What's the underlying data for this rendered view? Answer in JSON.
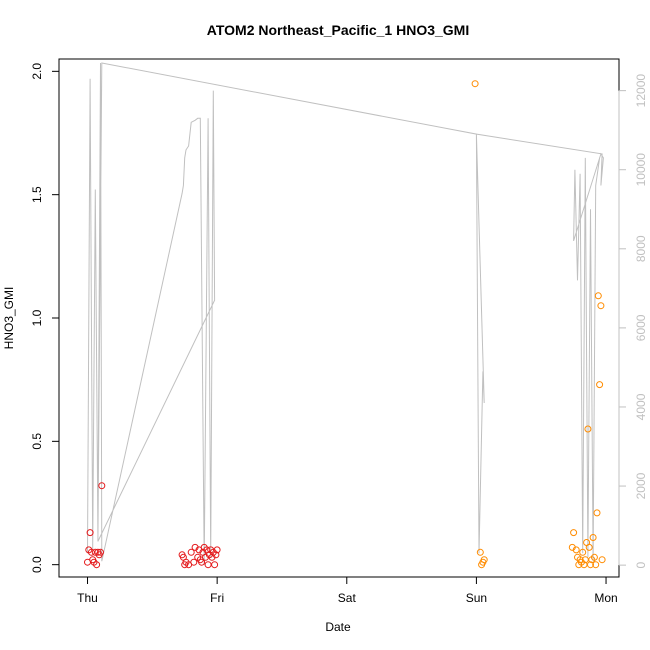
{
  "chart_data": {
    "type": "scatter",
    "title": "ATOM2 Northeast_Pacific_1 HNO3_GMI",
    "xlabel": "Date",
    "ylabel": "HNO3_GMI",
    "x_ticks": [
      "Thu",
      "Fri",
      "Sat",
      "Sun",
      "Mon"
    ],
    "xlim_days": [
      -0.22,
      4.1
    ],
    "ylim": [
      -0.05,
      2.05
    ],
    "y_ticks": [
      0.0,
      0.5,
      1.0,
      1.5,
      2.0
    ],
    "y_tick_labels": [
      "0.0",
      "0.5",
      "1.0",
      "1.5",
      "2.0"
    ],
    "right_axis": {
      "ylim": [
        -300,
        12800
      ],
      "ticks": [
        0,
        2000,
        4000,
        6000,
        8000,
        10000,
        12000
      ],
      "tick_labels": [
        "0",
        "2000",
        "4000",
        "6000",
        "8000",
        "10000",
        "12000"
      ],
      "color": "#c0c0c0"
    },
    "grid": false,
    "series": [
      {
        "marker": "open-circle",
        "color": "#e41a1c",
        "points": [
          [
            0.0,
            0.01
          ],
          [
            0.01,
            0.06
          ],
          [
            0.02,
            0.13
          ],
          [
            0.03,
            0.05
          ],
          [
            0.04,
            0.02
          ],
          [
            0.05,
            0.01
          ],
          [
            0.06,
            0.05
          ],
          [
            0.07,
            0.0
          ],
          [
            0.08,
            0.05
          ],
          [
            0.09,
            0.04
          ],
          [
            0.1,
            0.05
          ],
          [
            0.11,
            0.32
          ],
          [
            0.73,
            0.04
          ],
          [
            0.74,
            0.03
          ],
          [
            0.75,
            0.0
          ],
          [
            0.76,
            0.01
          ],
          [
            0.78,
            0.0
          ],
          [
            0.8,
            0.05
          ],
          [
            0.82,
            0.01
          ],
          [
            0.83,
            0.07
          ],
          [
            0.85,
            0.03
          ],
          [
            0.86,
            0.06
          ],
          [
            0.87,
            0.02
          ],
          [
            0.88,
            0.01
          ],
          [
            0.89,
            0.05
          ],
          [
            0.9,
            0.07
          ],
          [
            0.91,
            0.03
          ],
          [
            0.92,
            0.06
          ],
          [
            0.93,
            0.0
          ],
          [
            0.94,
            0.04
          ],
          [
            0.95,
            0.06
          ],
          [
            0.96,
            0.03
          ],
          [
            0.97,
            0.05
          ],
          [
            0.98,
            0.0
          ],
          [
            0.99,
            0.04
          ],
          [
            1.0,
            0.06
          ]
        ]
      },
      {
        "marker": "open-circle",
        "color": "#ff8c00",
        "points": [
          [
            2.99,
            1.95
          ],
          [
            3.03,
            0.05
          ],
          [
            3.04,
            0.0
          ],
          [
            3.05,
            0.01
          ],
          [
            3.06,
            0.02
          ],
          [
            3.74,
            0.07
          ],
          [
            3.75,
            0.13
          ],
          [
            3.77,
            0.06
          ],
          [
            3.78,
            0.03
          ],
          [
            3.79,
            0.0
          ],
          [
            3.8,
            0.02
          ],
          [
            3.81,
            0.01
          ],
          [
            3.82,
            0.05
          ],
          [
            3.83,
            0.0
          ],
          [
            3.84,
            0.02
          ],
          [
            3.85,
            0.09
          ],
          [
            3.86,
            0.55
          ],
          [
            3.87,
            0.07
          ],
          [
            3.88,
            0.0
          ],
          [
            3.89,
            0.02
          ],
          [
            3.9,
            0.11
          ],
          [
            3.91,
            0.03
          ],
          [
            3.92,
            0.0
          ],
          [
            3.93,
            0.21
          ],
          [
            3.94,
            1.09
          ],
          [
            3.95,
            0.73
          ],
          [
            3.96,
            1.05
          ],
          [
            3.97,
            0.02
          ]
        ]
      }
    ],
    "secondary_line": {
      "color": "#c0c0c0",
      "axis": "right",
      "points": [
        [
          0.0,
          300
        ],
        [
          0.02,
          12300
        ],
        [
          0.04,
          400
        ],
        [
          0.06,
          9500
        ],
        [
          0.08,
          800
        ],
        [
          0.1,
          12700
        ],
        [
          0.11,
          100
        ],
        [
          0.73,
          9400
        ],
        [
          0.74,
          9600
        ],
        [
          0.75,
          10300
        ],
        [
          0.76,
          10500
        ],
        [
          0.78,
          10600
        ],
        [
          0.8,
          11200
        ],
        [
          0.83,
          11250
        ],
        [
          0.85,
          11300
        ],
        [
          0.87,
          11300
        ],
        [
          0.9,
          0
        ],
        [
          0.93,
          11300
        ],
        [
          0.95,
          200
        ],
        [
          0.97,
          12000
        ],
        [
          0.98,
          6700
        ],
        [
          0.08,
          600
        ],
        [
          0.11,
          12700
        ],
        [
          3.0,
          10900
        ],
        [
          3.02,
          300
        ],
        [
          3.05,
          4900
        ],
        [
          3.06,
          4100
        ],
        [
          3.0,
          10900
        ],
        [
          3.97,
          10400
        ],
        [
          3.96,
          9600
        ],
        [
          3.98,
          10300
        ],
        [
          3.96,
          10400
        ],
        [
          3.75,
          8200
        ],
        [
          3.76,
          10000
        ],
        [
          3.78,
          7200
        ],
        [
          3.8,
          9900
        ],
        [
          3.82,
          300
        ],
        [
          3.84,
          10300
        ],
        [
          3.86,
          200
        ],
        [
          3.88,
          9000
        ],
        [
          3.9,
          100
        ],
        [
          3.92,
          9600
        ],
        [
          3.95,
          10300
        ]
      ]
    }
  }
}
